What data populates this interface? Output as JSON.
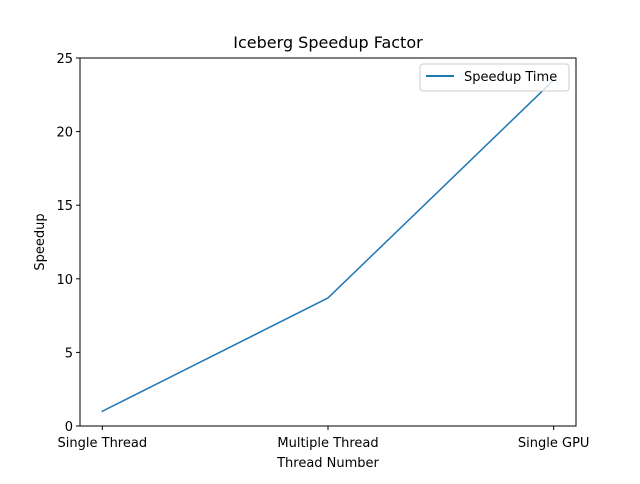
{
  "chart_data": {
    "type": "line",
    "title": "Iceberg Speedup Factor",
    "xlabel": "Thread Number",
    "ylabel": "Speedup",
    "categories": [
      "Single Thread",
      "Multiple Thread",
      "Single GPU"
    ],
    "series": [
      {
        "name": "Speedup Time",
        "values": [
          1.0,
          8.7,
          23.5
        ],
        "color": "#1f77b4"
      }
    ],
    "ylim": [
      0,
      25
    ],
    "yticks": [
      0,
      5,
      10,
      15,
      20,
      25
    ],
    "ytick_labels": [
      "0",
      "5",
      "10",
      "15",
      "20",
      "25"
    ],
    "grid": false,
    "legend_position": "top-right"
  }
}
